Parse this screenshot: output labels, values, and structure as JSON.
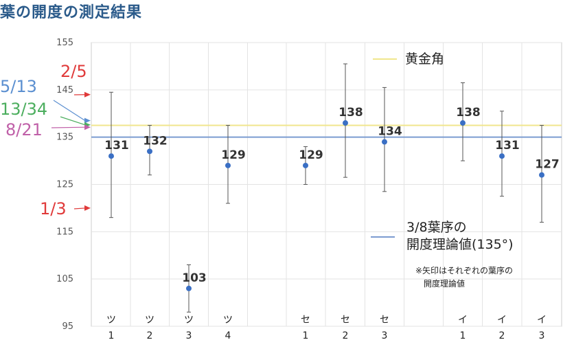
{
  "page_title": "葉の開度の測定結果",
  "chart_data": {
    "type": "scatter",
    "title": "葉の開度の測定結果",
    "ylim": [
      95,
      155
    ],
    "yticks": [
      95,
      105,
      115,
      125,
      135,
      145,
      155
    ],
    "grid": true,
    "categories": [
      {
        "top": "ツ",
        "bottom": "1"
      },
      {
        "top": "ツ",
        "bottom": "2"
      },
      {
        "top": "ツ",
        "bottom": "3"
      },
      {
        "top": "ツ",
        "bottom": "4"
      },
      {
        "top": "",
        "bottom": ""
      },
      {
        "top": "セ",
        "bottom": "1"
      },
      {
        "top": "セ",
        "bottom": "2"
      },
      {
        "top": "セ",
        "bottom": "3"
      },
      {
        "top": "",
        "bottom": ""
      },
      {
        "top": "イ",
        "bottom": "1"
      },
      {
        "top": "イ",
        "bottom": "2"
      },
      {
        "top": "イ",
        "bottom": "3"
      }
    ],
    "points": [
      {
        "cat": 0,
        "value": 131,
        "label": "131",
        "low": 118,
        "high": 144.5
      },
      {
        "cat": 1,
        "value": 132,
        "label": "132",
        "low": 127,
        "high": 137.5
      },
      {
        "cat": 2,
        "value": 103,
        "label": "103",
        "low": 98,
        "high": 108
      },
      {
        "cat": 3,
        "value": 129,
        "label": "129",
        "low": 121,
        "high": 137.5
      },
      {
        "cat": 5,
        "value": 129,
        "label": "129",
        "low": 125,
        "high": 133
      },
      {
        "cat": 6,
        "value": 138,
        "label": "138",
        "low": 126.5,
        "high": 150.5
      },
      {
        "cat": 7,
        "value": 134,
        "label": "134",
        "low": 123.5,
        "high": 145.5
      },
      {
        "cat": 9,
        "value": 138,
        "label": "138",
        "low": 130,
        "high": 146.5
      },
      {
        "cat": 10,
        "value": 131,
        "label": "131",
        "low": 122.5,
        "high": 140.5
      },
      {
        "cat": 11,
        "value": 127,
        "label": "127",
        "low": 117,
        "high": 137.5
      }
    ],
    "reference_lines": [
      {
        "name": "黄金角",
        "value": 137.5,
        "color": "#f0e68c"
      },
      {
        "name": "3/8葉序の開度理論値(135°)",
        "value": 135,
        "color": "#7b9bd0"
      }
    ],
    "legend": {
      "golden": "黄金角",
      "theory_line1": "3/8葉序の",
      "theory_line2": "開度理論値(135°)"
    },
    "note": {
      "line1": "※矢印はそれぞれの葉序の",
      "line2": "開度理論値"
    },
    "arrows": [
      {
        "label": "2/5",
        "value": 144,
        "color": "#e03a3a"
      },
      {
        "label": "5/13",
        "value": 138.5,
        "color": "#5b8fd0"
      },
      {
        "label": "13/34",
        "value": 137.6,
        "color": "#4cae5e"
      },
      {
        "label": "8/21",
        "value": 137.1,
        "color": "#c060a8"
      },
      {
        "label": "1/3",
        "value": 120,
        "color": "#e03a3a"
      }
    ],
    "colors": {
      "point": "#3a6fc4",
      "errorbar": "#555555",
      "grid": "#e3e3e3",
      "frame": "#cccccc"
    }
  }
}
